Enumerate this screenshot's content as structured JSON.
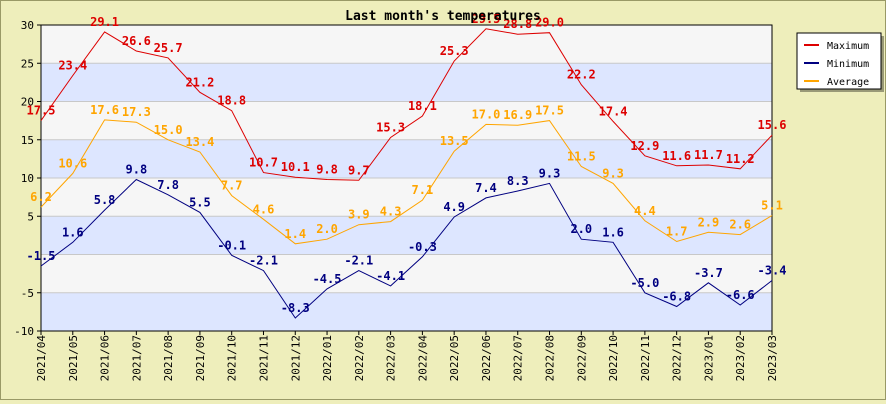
{
  "chart_data": {
    "type": "line",
    "title": "Last month's temperatures",
    "xlabel": "",
    "ylabel": "",
    "ylim": [
      -10,
      30
    ],
    "yticks": [
      -10,
      -5,
      5,
      10,
      15,
      20,
      25,
      30
    ],
    "grid": "horizontal bands",
    "legend_position": "top-right",
    "categories": [
      "2021/04",
      "2021/05",
      "2021/06",
      "2021/07",
      "2021/08",
      "2021/09",
      "2021/10",
      "2021/11",
      "2021/12",
      "2022/01",
      "2022/02",
      "2022/03",
      "2022/04",
      "2022/05",
      "2022/06",
      "2022/07",
      "2022/08",
      "2022/09",
      "2022/10",
      "2022/11",
      "2022/12",
      "2023/01",
      "2023/02",
      "2023/03"
    ],
    "series": [
      {
        "name": "Maximum",
        "color": "#dd0000",
        "values": [
          17.5,
          23.4,
          29.1,
          26.6,
          25.7,
          21.2,
          18.8,
          10.7,
          10.1,
          9.8,
          9.7,
          15.3,
          18.1,
          25.3,
          29.5,
          28.8,
          29.0,
          22.2,
          17.4,
          12.9,
          11.6,
          11.7,
          11.2,
          15.6
        ]
      },
      {
        "name": "Minimum",
        "color": "#000080",
        "values": [
          -1.5,
          1.6,
          5.8,
          9.8,
          7.8,
          5.5,
          -0.1,
          -2.1,
          -8.3,
          -4.5,
          -2.1,
          -4.1,
          -0.3,
          4.9,
          7.4,
          8.3,
          9.3,
          2.0,
          1.6,
          -5.0,
          -6.8,
          -3.7,
          -6.6,
          -3.4
        ]
      },
      {
        "name": "Average",
        "color": "#ffa500",
        "values": [
          6.2,
          10.6,
          17.6,
          17.3,
          15.0,
          13.4,
          7.7,
          4.6,
          1.4,
          2.0,
          3.9,
          4.3,
          7.1,
          13.5,
          17.0,
          16.9,
          17.5,
          11.5,
          9.3,
          4.4,
          1.7,
          2.9,
          2.6,
          5.1
        ]
      }
    ]
  }
}
